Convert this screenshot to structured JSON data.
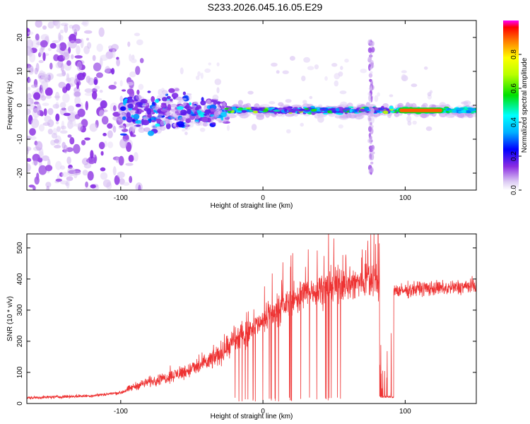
{
  "title": "S233.2026.045.16.05.E29",
  "chart_data": [
    {
      "type": "heatmap",
      "xlabel": "Height of straight line (km)",
      "ylabel": "Frequency (Hz)",
      "xlim": [
        -166,
        150
      ],
      "ylim": [
        -25,
        25
      ],
      "xticks": [
        -100,
        0,
        100
      ],
      "yticks": [
        -20,
        -10,
        0,
        10,
        20
      ],
      "colorbar": {
        "label": "Normalized spectral amplitude",
        "range": [
          0,
          1
        ],
        "ticks": [
          "0.0",
          "0.2",
          "0.4",
          "0.6",
          "0.8"
        ],
        "tick_values": [
          0,
          0.2,
          0.4,
          0.6,
          0.8
        ]
      },
      "features": {
        "noise_region_x": [
          -166,
          -95
        ],
        "band_center_hz": -1.5,
        "band_start_km": -25,
        "broad_region_x": [
          -100,
          -25
        ],
        "vertical_streak_km": 76,
        "strong_segment_x": [
          96,
          126
        ],
        "strong_segment_amplitude": 0.9
      }
    },
    {
      "type": "line",
      "xlabel": "Height of straight line (km)",
      "ylabel": "SNR (10 * v/v)",
      "xlim": [
        -166,
        150
      ],
      "ylim": [
        0,
        545
      ],
      "xticks": [
        -100,
        0,
        100
      ],
      "yticks": [
        0,
        100,
        200,
        300,
        400,
        500
      ],
      "series": [
        {
          "name": "SNR",
          "color": "#ee3333",
          "anchor_x": [
            -166,
            -120,
            -100,
            -90,
            -80,
            -70,
            -60,
            -50,
            -40,
            -30,
            -20,
            -10,
            0,
            10,
            20,
            30,
            40,
            50,
            60,
            70,
            76,
            80,
            84,
            90,
            96,
            110,
            130,
            150
          ],
          "anchor_y": [
            18,
            25,
            35,
            55,
            70,
            80,
            95,
            110,
            130,
            160,
            200,
            235,
            270,
            300,
            330,
            355,
            370,
            380,
            385,
            390,
            410,
            395,
            370,
            370,
            360,
            370,
            370,
            380
          ],
          "dropout_x": [
            82,
            92
          ],
          "dropout_level": 18,
          "peak_max": 545
        }
      ]
    }
  ]
}
